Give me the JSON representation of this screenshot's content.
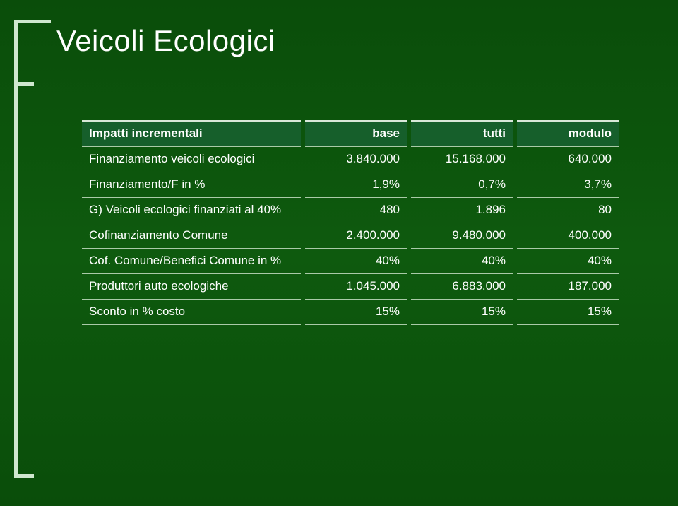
{
  "slide": {
    "title": "Veicoli Ecologici",
    "background_color": "#0e5a0e",
    "bracket_color": "#cfe7cf",
    "text_color": "#ffffff"
  },
  "table": {
    "header_bg": "#165f2b",
    "border_color": "#aacaa8",
    "columns": [
      {
        "label": "Impatti incrementali",
        "align": "left"
      },
      {
        "label": "base",
        "align": "right"
      },
      {
        "label": "tutti",
        "align": "right"
      },
      {
        "label": "modulo",
        "align": "right"
      }
    ],
    "rows": [
      {
        "label": "Finanziamento veicoli ecologici",
        "base": "3.840.000",
        "tutti": "15.168.000",
        "modulo": "640.000"
      },
      {
        "label": "Finanziamento/F in %",
        "base": "1,9%",
        "tutti": "0,7%",
        "modulo": "3,7%"
      },
      {
        "label": "G) Veicoli ecologici finanziati al 40%",
        "base": "480",
        "tutti": "1.896",
        "modulo": "80"
      },
      {
        "label": "Cofinanziamento Comune",
        "base": "2.400.000",
        "tutti": "9.480.000",
        "modulo": "400.000"
      },
      {
        "label": "Cof. Comune/Benefici Comune in %",
        "base": "40%",
        "tutti": "40%",
        "modulo": "40%"
      },
      {
        "label": "Produttori auto ecologiche",
        "base": "1.045.000",
        "tutti": "6.883.000",
        "modulo": "187.000"
      },
      {
        "label": "Sconto in % costo",
        "base": "15%",
        "tutti": "15%",
        "modulo": "15%"
      }
    ]
  }
}
